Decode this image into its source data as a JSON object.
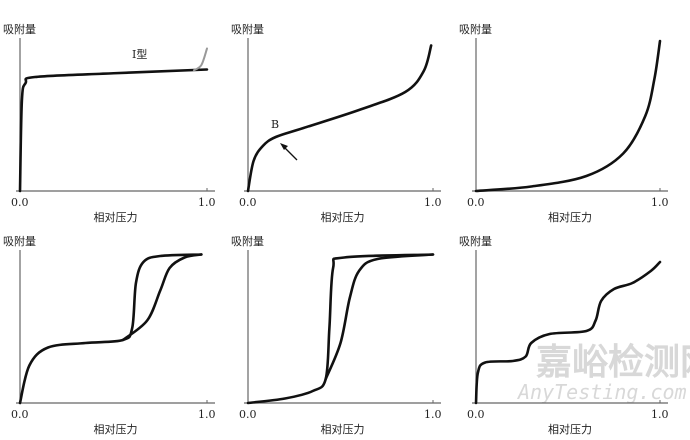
{
  "chart_data": {
    "type": "line",
    "title": "",
    "panels": [
      {
        "ylabel": "吸附量",
        "xlabel": "相对压力",
        "xticks": [
          "0.0",
          "1.0"
        ],
        "annotation": "I型",
        "series": [
          {
            "name": "main",
            "color": "#111111",
            "points": [
              [
                0,
                0
              ],
              [
                0.01,
                0.6
              ],
              [
                0.03,
                0.72
              ],
              [
                0.08,
                0.76
              ],
              [
                0.5,
                0.785
              ],
              [
                1,
                0.81
              ]
            ]
          },
          {
            "name": "tail",
            "color": "#999999",
            "points": [
              [
                0.93,
                0.805
              ],
              [
                0.97,
                0.84
              ],
              [
                1.0,
                0.95
              ]
            ]
          }
        ]
      },
      {
        "ylabel": "吸附量",
        "xlabel": "相对压力",
        "xticks": [
          "0.0",
          "1.0"
        ],
        "annotation": "B",
        "series": [
          {
            "name": "main",
            "color": "#111111",
            "points": [
              [
                0,
                0
              ],
              [
                0.03,
                0.2
              ],
              [
                0.08,
                0.3
              ],
              [
                0.15,
                0.36
              ],
              [
                0.3,
                0.42
              ],
              [
                0.6,
                0.54
              ],
              [
                0.85,
                0.66
              ],
              [
                0.95,
                0.8
              ],
              [
                0.99,
                0.97
              ]
            ]
          }
        ]
      },
      {
        "ylabel": "吸附量",
        "xlabel": "相对压力",
        "xticks": [
          "0.0",
          "1.0"
        ],
        "series": [
          {
            "name": "main",
            "color": "#111111",
            "points": [
              [
                0,
                0
              ],
              [
                0.3,
                0.03
              ],
              [
                0.6,
                0.1
              ],
              [
                0.8,
                0.25
              ],
              [
                0.92,
                0.5
              ],
              [
                0.97,
                0.75
              ],
              [
                1.0,
                1.0
              ]
            ]
          }
        ]
      },
      {
        "ylabel": "吸附量",
        "xlabel": "相对压力",
        "xticks": [
          "0.0",
          "1.0"
        ],
        "series": [
          {
            "name": "branch-a",
            "color": "#111111",
            "points": [
              [
                0,
                0
              ],
              [
                0.05,
                0.25
              ],
              [
                0.15,
                0.37
              ],
              [
                0.35,
                0.4
              ],
              [
                0.55,
                0.42
              ],
              [
                0.6,
                0.5
              ],
              [
                0.62,
                0.8
              ],
              [
                0.66,
                0.94
              ],
              [
                0.75,
                0.98
              ],
              [
                0.97,
                0.99
              ]
            ]
          },
          {
            "name": "branch-b",
            "color": "#111111",
            "points": [
              [
                0.55,
                0.42
              ],
              [
                0.68,
                0.55
              ],
              [
                0.75,
                0.75
              ],
              [
                0.8,
                0.9
              ],
              [
                0.88,
                0.97
              ],
              [
                0.97,
                0.99
              ]
            ]
          }
        ]
      },
      {
        "ylabel": "吸附量",
        "xlabel": "相对压力",
        "xticks": [
          "0.0",
          "1.0"
        ],
        "series": [
          {
            "name": "branch-a",
            "color": "#111111",
            "points": [
              [
                0,
                0
              ],
              [
                0.2,
                0.03
              ],
              [
                0.35,
                0.08
              ],
              [
                0.42,
                0.16
              ],
              [
                0.44,
                0.5
              ],
              [
                0.46,
                0.9
              ],
              [
                0.52,
                0.97
              ],
              [
                1,
                0.99
              ]
            ]
          },
          {
            "name": "branch-b",
            "color": "#111111",
            "points": [
              [
                0.42,
                0.16
              ],
              [
                0.5,
                0.4
              ],
              [
                0.55,
                0.7
              ],
              [
                0.6,
                0.88
              ],
              [
                0.7,
                0.96
              ],
              [
                1,
                0.99
              ]
            ]
          }
        ]
      },
      {
        "ylabel": "吸附量",
        "xlabel": "相对压力",
        "xticks": [
          "0.0",
          "1.0"
        ],
        "series": [
          {
            "name": "main",
            "color": "#111111",
            "points": [
              [
                0,
                0
              ],
              [
                0.01,
                0.2
              ],
              [
                0.05,
                0.27
              ],
              [
                0.2,
                0.28
              ],
              [
                0.27,
                0.31
              ],
              [
                0.3,
                0.4
              ],
              [
                0.4,
                0.46
              ],
              [
                0.6,
                0.48
              ],
              [
                0.65,
                0.55
              ],
              [
                0.68,
                0.68
              ],
              [
                0.75,
                0.76
              ],
              [
                0.85,
                0.8
              ],
              [
                0.95,
                0.88
              ],
              [
                1,
                0.94
              ]
            ]
          }
        ]
      }
    ]
  },
  "watermark": {
    "cn": "嘉峪检测网",
    "en": "AnyTesting.com"
  }
}
